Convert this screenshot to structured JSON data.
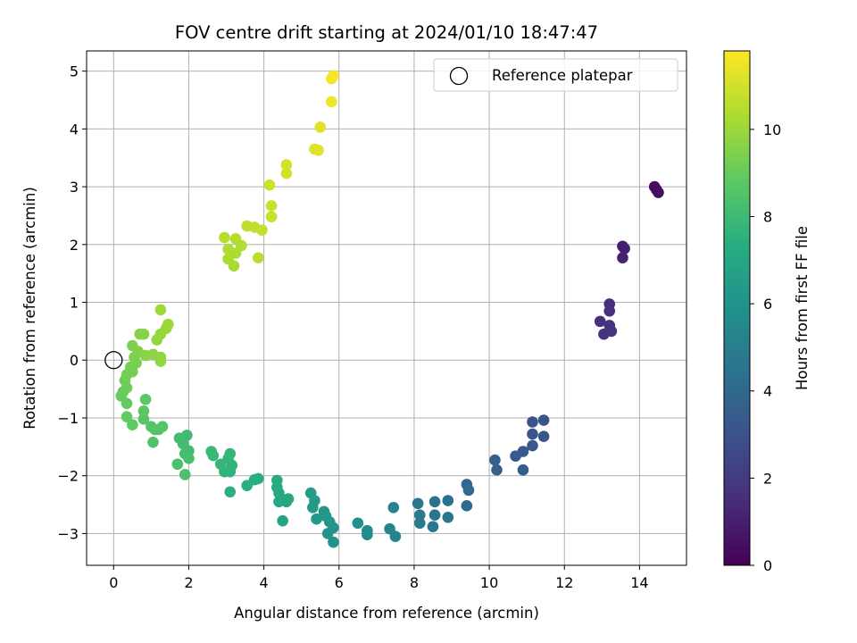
{
  "chart_data": {
    "type": "scatter",
    "title": "FOV centre drift starting at 2024/01/10 18:47:47",
    "xlabel": "Angular distance from reference (arcmin)",
    "ylabel": "Rotation from reference (arcmin)",
    "xlim": [
      -0.72,
      15.25
    ],
    "ylim": [
      -3.55,
      5.35
    ],
    "xticks": [
      0,
      2,
      4,
      6,
      8,
      10,
      12,
      14
    ],
    "yticks": [
      -3,
      -2,
      -1,
      0,
      1,
      2,
      3,
      4,
      5
    ],
    "xtick_labels": [
      "0",
      "2",
      "4",
      "6",
      "8",
      "10",
      "12",
      "14"
    ],
    "ytick_labels": [
      "−3",
      "−2",
      "−1",
      "0",
      "1",
      "2",
      "3",
      "4",
      "5"
    ],
    "grid": true,
    "legend": {
      "placement": "top-right",
      "label": "Reference platepar"
    },
    "reference_point": {
      "x": 0,
      "y": 0
    },
    "colorbar": {
      "label": "Hours from first FF file",
      "colormap": "viridis",
      "range": [
        0,
        11.8
      ],
      "ticks": [
        0,
        2,
        4,
        6,
        8,
        10
      ],
      "tick_labels": [
        "0",
        "2",
        "4",
        "6",
        "8",
        "10"
      ]
    },
    "points": [
      {
        "x": 14.4,
        "y": 3.0,
        "c": 0.3
      },
      {
        "x": 14.45,
        "y": 2.95,
        "c": 0.35
      },
      {
        "x": 14.5,
        "y": 2.9,
        "c": 0.4
      },
      {
        "x": 13.55,
        "y": 1.97,
        "c": 1.0
      },
      {
        "x": 13.6,
        "y": 1.93,
        "c": 1.05
      },
      {
        "x": 13.55,
        "y": 1.77,
        "c": 1.1
      },
      {
        "x": 13.2,
        "y": 0.97,
        "c": 1.5
      },
      {
        "x": 13.2,
        "y": 0.85,
        "c": 1.55
      },
      {
        "x": 12.95,
        "y": 0.67,
        "c": 1.6
      },
      {
        "x": 13.2,
        "y": 0.6,
        "c": 1.65
      },
      {
        "x": 13.05,
        "y": 0.45,
        "c": 1.7
      },
      {
        "x": 13.25,
        "y": 0.5,
        "c": 1.75
      },
      {
        "x": 11.45,
        "y": -1.04,
        "c": 3.0
      },
      {
        "x": 11.15,
        "y": -1.07,
        "c": 3.05
      },
      {
        "x": 11.15,
        "y": -1.28,
        "c": 3.1
      },
      {
        "x": 11.45,
        "y": -1.32,
        "c": 3.15
      },
      {
        "x": 11.15,
        "y": -1.48,
        "c": 3.2
      },
      {
        "x": 10.9,
        "y": -1.58,
        "c": 3.3
      },
      {
        "x": 10.7,
        "y": -1.66,
        "c": 3.35
      },
      {
        "x": 10.9,
        "y": -1.9,
        "c": 3.4
      },
      {
        "x": 10.15,
        "y": -1.73,
        "c": 3.6
      },
      {
        "x": 10.2,
        "y": -1.9,
        "c": 3.65
      },
      {
        "x": 9.4,
        "y": -2.15,
        "c": 4.0
      },
      {
        "x": 9.45,
        "y": -2.25,
        "c": 4.05
      },
      {
        "x": 9.4,
        "y": -2.52,
        "c": 4.1
      },
      {
        "x": 8.9,
        "y": -2.43,
        "c": 4.3
      },
      {
        "x": 8.55,
        "y": -2.45,
        "c": 4.4
      },
      {
        "x": 8.55,
        "y": -2.68,
        "c": 4.45
      },
      {
        "x": 8.9,
        "y": -2.72,
        "c": 4.5
      },
      {
        "x": 8.5,
        "y": -2.88,
        "c": 4.55
      },
      {
        "x": 8.1,
        "y": -2.48,
        "c": 4.7
      },
      {
        "x": 8.15,
        "y": -2.68,
        "c": 4.75
      },
      {
        "x": 8.15,
        "y": -2.82,
        "c": 4.8
      },
      {
        "x": 7.45,
        "y": -2.55,
        "c": 5.2
      },
      {
        "x": 7.35,
        "y": -2.92,
        "c": 5.3
      },
      {
        "x": 7.5,
        "y": -3.05,
        "c": 5.35
      },
      {
        "x": 6.75,
        "y": -2.95,
        "c": 5.6
      },
      {
        "x": 6.75,
        "y": -3.02,
        "c": 5.65
      },
      {
        "x": 6.5,
        "y": -2.82,
        "c": 5.8
      },
      {
        "x": 5.85,
        "y": -3.15,
        "c": 6.0
      },
      {
        "x": 5.7,
        "y": -3.0,
        "c": 6.05
      },
      {
        "x": 5.85,
        "y": -2.9,
        "c": 6.1
      },
      {
        "x": 5.75,
        "y": -2.8,
        "c": 6.15
      },
      {
        "x": 5.65,
        "y": -2.7,
        "c": 6.2
      },
      {
        "x": 5.6,
        "y": -2.62,
        "c": 6.25
      },
      {
        "x": 5.4,
        "y": -2.75,
        "c": 6.3
      },
      {
        "x": 5.3,
        "y": -2.55,
        "c": 6.35
      },
      {
        "x": 5.35,
        "y": -2.43,
        "c": 6.4
      },
      {
        "x": 5.25,
        "y": -2.3,
        "c": 6.45
      },
      {
        "x": 4.5,
        "y": -2.78,
        "c": 6.8
      },
      {
        "x": 4.6,
        "y": -2.45,
        "c": 6.85
      },
      {
        "x": 4.55,
        "y": -2.42,
        "c": 6.9
      },
      {
        "x": 4.4,
        "y": -2.45,
        "c": 6.95
      },
      {
        "x": 4.65,
        "y": -2.4,
        "c": 7.0
      },
      {
        "x": 4.4,
        "y": -2.3,
        "c": 7.05
      },
      {
        "x": 4.35,
        "y": -2.2,
        "c": 7.1
      },
      {
        "x": 4.35,
        "y": -2.08,
        "c": 7.15
      },
      {
        "x": 3.85,
        "y": -2.05,
        "c": 7.3
      },
      {
        "x": 3.75,
        "y": -2.07,
        "c": 7.35
      },
      {
        "x": 3.55,
        "y": -2.17,
        "c": 7.4
      },
      {
        "x": 3.1,
        "y": -2.28,
        "c": 7.5
      },
      {
        "x": 3.1,
        "y": -1.93,
        "c": 7.55
      },
      {
        "x": 3.15,
        "y": -1.82,
        "c": 7.6
      },
      {
        "x": 2.95,
        "y": -1.93,
        "c": 7.65
      },
      {
        "x": 3.05,
        "y": -1.7,
        "c": 7.7
      },
      {
        "x": 3.1,
        "y": -1.62,
        "c": 7.75
      },
      {
        "x": 2.85,
        "y": -1.8,
        "c": 7.8
      },
      {
        "x": 2.65,
        "y": -1.65,
        "c": 7.85
      },
      {
        "x": 2.6,
        "y": -1.58,
        "c": 7.9
      },
      {
        "x": 1.95,
        "y": -1.3,
        "c": 8.0
      },
      {
        "x": 1.85,
        "y": -1.45,
        "c": 8.05
      },
      {
        "x": 1.75,
        "y": -1.35,
        "c": 8.1
      },
      {
        "x": 2.0,
        "y": -1.57,
        "c": 8.15
      },
      {
        "x": 1.9,
        "y": -1.62,
        "c": 8.2
      },
      {
        "x": 2.0,
        "y": -1.7,
        "c": 8.25
      },
      {
        "x": 1.7,
        "y": -1.8,
        "c": 8.3
      },
      {
        "x": 1.9,
        "y": -1.98,
        "c": 8.35
      },
      {
        "x": 1.05,
        "y": -1.42,
        "c": 8.45
      },
      {
        "x": 1.1,
        "y": -1.2,
        "c": 8.5
      },
      {
        "x": 1.3,
        "y": -1.15,
        "c": 8.55
      },
      {
        "x": 1.2,
        "y": -1.2,
        "c": 8.6
      },
      {
        "x": 1.0,
        "y": -1.15,
        "c": 8.65
      },
      {
        "x": 0.8,
        "y": -1.02,
        "c": 8.7
      },
      {
        "x": 0.8,
        "y": -0.88,
        "c": 8.75
      },
      {
        "x": 0.85,
        "y": -0.68,
        "c": 8.8
      },
      {
        "x": 0.5,
        "y": -1.12,
        "c": 8.85
      },
      {
        "x": 0.35,
        "y": -0.98,
        "c": 8.9
      },
      {
        "x": 0.35,
        "y": -0.75,
        "c": 8.95
      },
      {
        "x": 0.2,
        "y": -0.62,
        "c": 9.0
      },
      {
        "x": 0.25,
        "y": -0.55,
        "c": 9.05
      },
      {
        "x": 0.35,
        "y": -0.48,
        "c": 9.1
      },
      {
        "x": 0.3,
        "y": -0.35,
        "c": 9.15
      },
      {
        "x": 0.35,
        "y": -0.25,
        "c": 9.2
      },
      {
        "x": 0.5,
        "y": -0.2,
        "c": 9.25
      },
      {
        "x": 0.45,
        "y": -0.12,
        "c": 9.3
      },
      {
        "x": 0.6,
        "y": -0.05,
        "c": 9.35
      },
      {
        "x": 0.55,
        "y": 0.05,
        "c": 9.4
      },
      {
        "x": 0.5,
        "y": 0.25,
        "c": 9.45
      },
      {
        "x": 0.65,
        "y": 0.15,
        "c": 9.5
      },
      {
        "x": 0.7,
        "y": 0.45,
        "c": 9.55
      },
      {
        "x": 0.8,
        "y": 0.45,
        "c": 9.6
      },
      {
        "x": 0.85,
        "y": 0.08,
        "c": 9.65
      },
      {
        "x": 1.05,
        "y": 0.1,
        "c": 9.7
      },
      {
        "x": 1.25,
        "y": 0.05,
        "c": 9.75
      },
      {
        "x": 1.25,
        "y": -0.02,
        "c": 9.8
      },
      {
        "x": 1.15,
        "y": 0.35,
        "c": 9.85
      },
      {
        "x": 1.25,
        "y": 0.45,
        "c": 9.9
      },
      {
        "x": 1.4,
        "y": 0.55,
        "c": 9.95
      },
      {
        "x": 1.45,
        "y": 0.62,
        "c": 10.0
      },
      {
        "x": 1.25,
        "y": 0.87,
        "c": 10.05
      },
      {
        "x": 3.2,
        "y": 1.63,
        "c": 10.2
      },
      {
        "x": 3.05,
        "y": 1.75,
        "c": 10.25
      },
      {
        "x": 3.25,
        "y": 1.85,
        "c": 10.3
      },
      {
        "x": 3.05,
        "y": 1.92,
        "c": 10.35
      },
      {
        "x": 3.4,
        "y": 1.98,
        "c": 10.4
      },
      {
        "x": 3.25,
        "y": 2.1,
        "c": 10.45
      },
      {
        "x": 2.95,
        "y": 2.12,
        "c": 10.5
      },
      {
        "x": 3.85,
        "y": 1.77,
        "c": 10.55
      },
      {
        "x": 3.55,
        "y": 2.32,
        "c": 10.6
      },
      {
        "x": 3.75,
        "y": 2.3,
        "c": 10.65
      },
      {
        "x": 3.95,
        "y": 2.25,
        "c": 10.7
      },
      {
        "x": 4.2,
        "y": 2.48,
        "c": 10.8
      },
      {
        "x": 4.2,
        "y": 2.67,
        "c": 10.85
      },
      {
        "x": 4.15,
        "y": 3.03,
        "c": 10.9
      },
      {
        "x": 4.6,
        "y": 3.23,
        "c": 10.95
      },
      {
        "x": 4.6,
        "y": 3.38,
        "c": 11.0
      },
      {
        "x": 5.35,
        "y": 3.65,
        "c": 11.2
      },
      {
        "x": 5.45,
        "y": 3.63,
        "c": 11.25
      },
      {
        "x": 5.5,
        "y": 4.03,
        "c": 11.3
      },
      {
        "x": 5.8,
        "y": 4.47,
        "c": 11.5
      },
      {
        "x": 5.8,
        "y": 4.87,
        "c": 11.6
      },
      {
        "x": 5.85,
        "y": 4.92,
        "c": 11.7
      }
    ]
  }
}
